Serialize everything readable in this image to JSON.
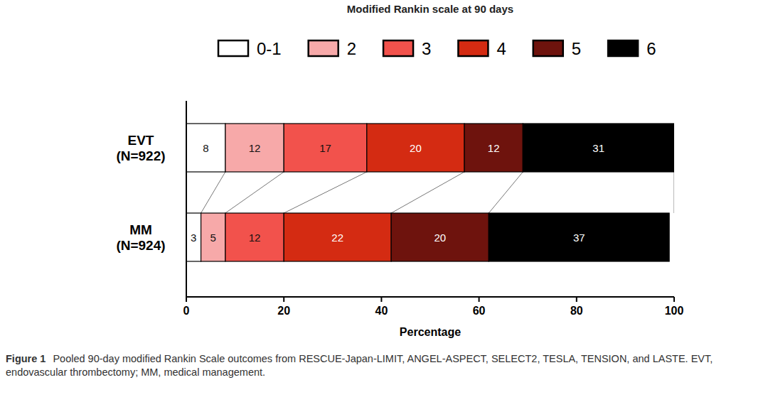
{
  "chart_data": {
    "type": "bar",
    "orientation": "horizontal",
    "stacked": true,
    "data_labels": true,
    "legend": "top",
    "grid": false,
    "title": "Modified Rankin scale at 90 days",
    "x_label": "Percentage",
    "annotations": [
      "Figure 1",
      "Pooled 90-day modified Rankin Scale outcomes from RESCUE-Japan-LIMIT, ANGEL-ASPECT, SELECT2, TESLA, TENSION, and LASTE. EVT, endovascular thrombectomy; MM, medical management."
    ],
    "categories": [
      "EVT (N=922)",
      "MM (N=924)"
    ],
    "xlim": [
      0,
      100
    ],
    "xticks": [
      0,
      20,
      40,
      60,
      80,
      100
    ],
    "series": [
      {
        "name": "0-1",
        "color": "#ffffff",
        "values": [
          8,
          3
        ]
      },
      {
        "name": "2",
        "color": "#f7a9a9",
        "values": [
          12,
          5
        ]
      },
      {
        "name": "3",
        "color": "#f2524c",
        "values": [
          17,
          12
        ]
      },
      {
        "name": "4",
        "color": "#d42b12",
        "values": [
          20,
          22
        ]
      },
      {
        "name": "5",
        "color": "#6e130d",
        "values": [
          12,
          20
        ]
      },
      {
        "name": "6",
        "color": "#000000",
        "values": [
          31,
          37
        ]
      }
    ]
  }
}
